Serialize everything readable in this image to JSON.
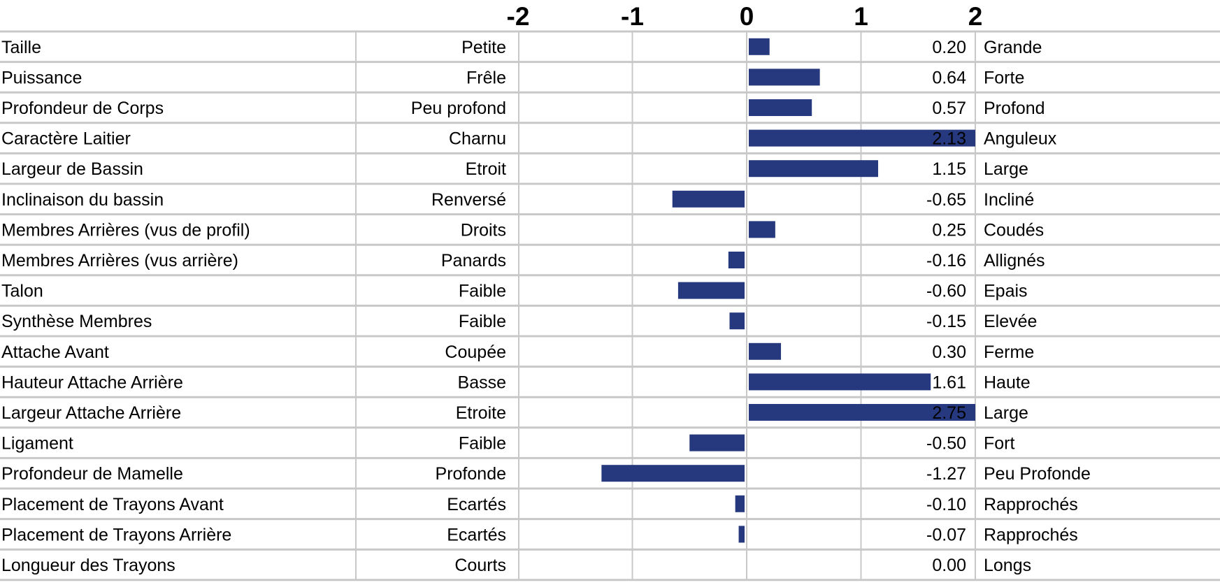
{
  "chart_data": {
    "type": "bar",
    "orientation": "horizontal",
    "bar_color": "#26397E",
    "grid_color": "#C8C8C8",
    "x_ticks": [
      -2,
      -1,
      0,
      1,
      2
    ],
    "xlim": [
      -2,
      2
    ],
    "grid": true,
    "rows": [
      {
        "trait": "Taille",
        "low": "Petite",
        "value": 0.2,
        "value_label": "0.20",
        "high": "Grande"
      },
      {
        "trait": "Puissance",
        "low": "Frêle",
        "value": 0.64,
        "value_label": "0.64",
        "high": "Forte"
      },
      {
        "trait": "Profondeur de Corps",
        "low": "Peu profond",
        "value": 0.57,
        "value_label": "0.57",
        "high": "Profond"
      },
      {
        "trait": "Caractère Laitier",
        "low": "Charnu",
        "value": 2.13,
        "value_label": "2.13",
        "high": "Anguleux"
      },
      {
        "trait": "Largeur de Bassin",
        "low": "Etroit",
        "value": 1.15,
        "value_label": "1.15",
        "high": "Large"
      },
      {
        "trait": "Inclinaison du bassin",
        "low": "Renversé",
        "value": -0.65,
        "value_label": "-0.65",
        "high": "Incliné"
      },
      {
        "trait": "Membres Arrières (vus de profil)",
        "low": "Droits",
        "value": 0.25,
        "value_label": "0.25",
        "high": "Coudés"
      },
      {
        "trait": "Membres Arrières (vus arrière)",
        "low": "Panards",
        "value": -0.16,
        "value_label": "-0.16",
        "high": "Allignés"
      },
      {
        "trait": "Talon",
        "low": "Faible",
        "value": -0.6,
        "value_label": "-0.60",
        "high": "Epais"
      },
      {
        "trait": "Synthèse Membres",
        "low": "Faible",
        "value": -0.15,
        "value_label": "-0.15",
        "high": "Elevée"
      },
      {
        "trait": "Attache Avant",
        "low": "Coupée",
        "value": 0.3,
        "value_label": "0.30",
        "high": "Ferme"
      },
      {
        "trait": "Hauteur Attache Arrière",
        "low": "Basse",
        "value": 1.61,
        "value_label": "1.61",
        "high": "Haute"
      },
      {
        "trait": "Largeur Attache Arrière",
        "low": "Etroite",
        "value": 2.75,
        "value_label": "2.75",
        "high": "Large"
      },
      {
        "trait": "Ligament",
        "low": "Faible",
        "value": -0.5,
        "value_label": "-0.50",
        "high": "Fort"
      },
      {
        "trait": "Profondeur de Mamelle",
        "low": "Profonde",
        "value": -1.27,
        "value_label": "-1.27",
        "high": "Peu Profonde"
      },
      {
        "trait": "Placement de Trayons Avant",
        "low": "Ecartés",
        "value": -0.1,
        "value_label": "-0.10",
        "high": "Rapprochés"
      },
      {
        "trait": "Placement de Trayons Arrière",
        "low": "Ecartés",
        "value": -0.07,
        "value_label": "-0.07",
        "high": "Rapprochés"
      },
      {
        "trait": "Longueur des Trayons",
        "low": "Courts",
        "value": 0.0,
        "value_label": "0.00",
        "high": "Longs"
      }
    ]
  }
}
